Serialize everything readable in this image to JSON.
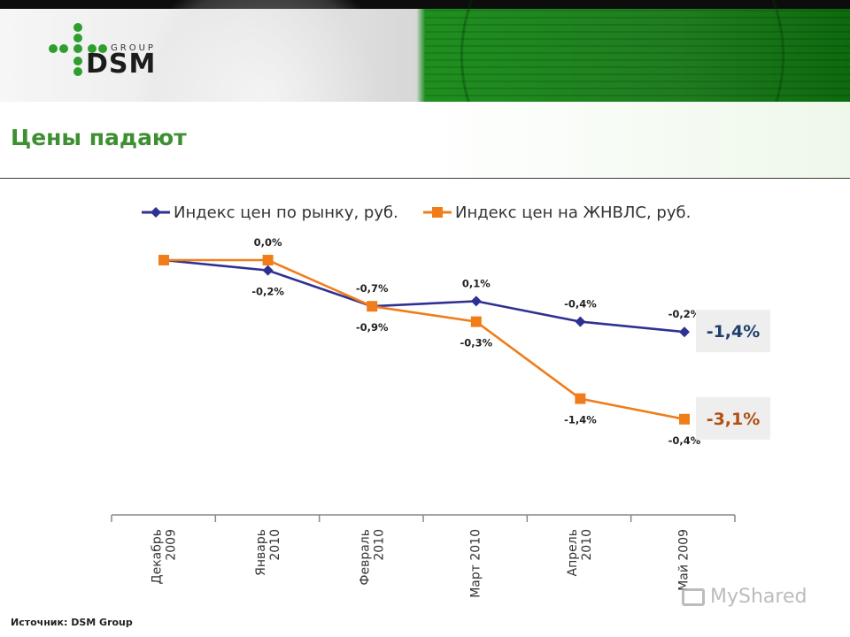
{
  "header": {
    "logo_text": "DSM",
    "logo_group": "GROUP"
  },
  "page": {
    "title": "Цены падают",
    "source": "Источник: DSM Group",
    "watermark": "MyShared"
  },
  "colors": {
    "series_market": "#2e3192",
    "series_zhnvls": "#f07d1a",
    "title_green": "#3d8f32",
    "total_market": "#1f3f6e",
    "total_zhnvls": "#b04f10"
  },
  "chart_data": {
    "type": "line",
    "categories": [
      "Декабрь 2009",
      "Январь 2010",
      "Февраль 2010",
      "Март 2010",
      "Апрель 2010",
      "Май 2009"
    ],
    "series": [
      {
        "name": "Индекс цен по рынку, руб.",
        "marker": "diamond",
        "values": [
          100,
          99.8,
          99.1,
          99.2,
          98.8,
          98.6
        ],
        "labels": [
          "",
          "-0,2%",
          "-0,7%",
          "0,1%",
          "-0,4%",
          "-0,2%"
        ],
        "label_pos": [
          "",
          "below",
          "above",
          "above",
          "above",
          "above"
        ],
        "total": "-1,4%"
      },
      {
        "name": "Индекс цен на ЖНВЛС, руб.",
        "marker": "square",
        "values": [
          100,
          100,
          99.1,
          98.8,
          97.3,
          96.9
        ],
        "labels": [
          "",
          "0,0%",
          "-0,9%",
          "-0,3%",
          "-1,4%",
          "-0,4%"
        ],
        "label_pos": [
          "",
          "above",
          "below",
          "below",
          "below",
          "below"
        ],
        "total": "-3,1%"
      }
    ],
    "ylim": [
      95,
      100.4
    ],
    "legend_position": "top",
    "grid": false
  }
}
